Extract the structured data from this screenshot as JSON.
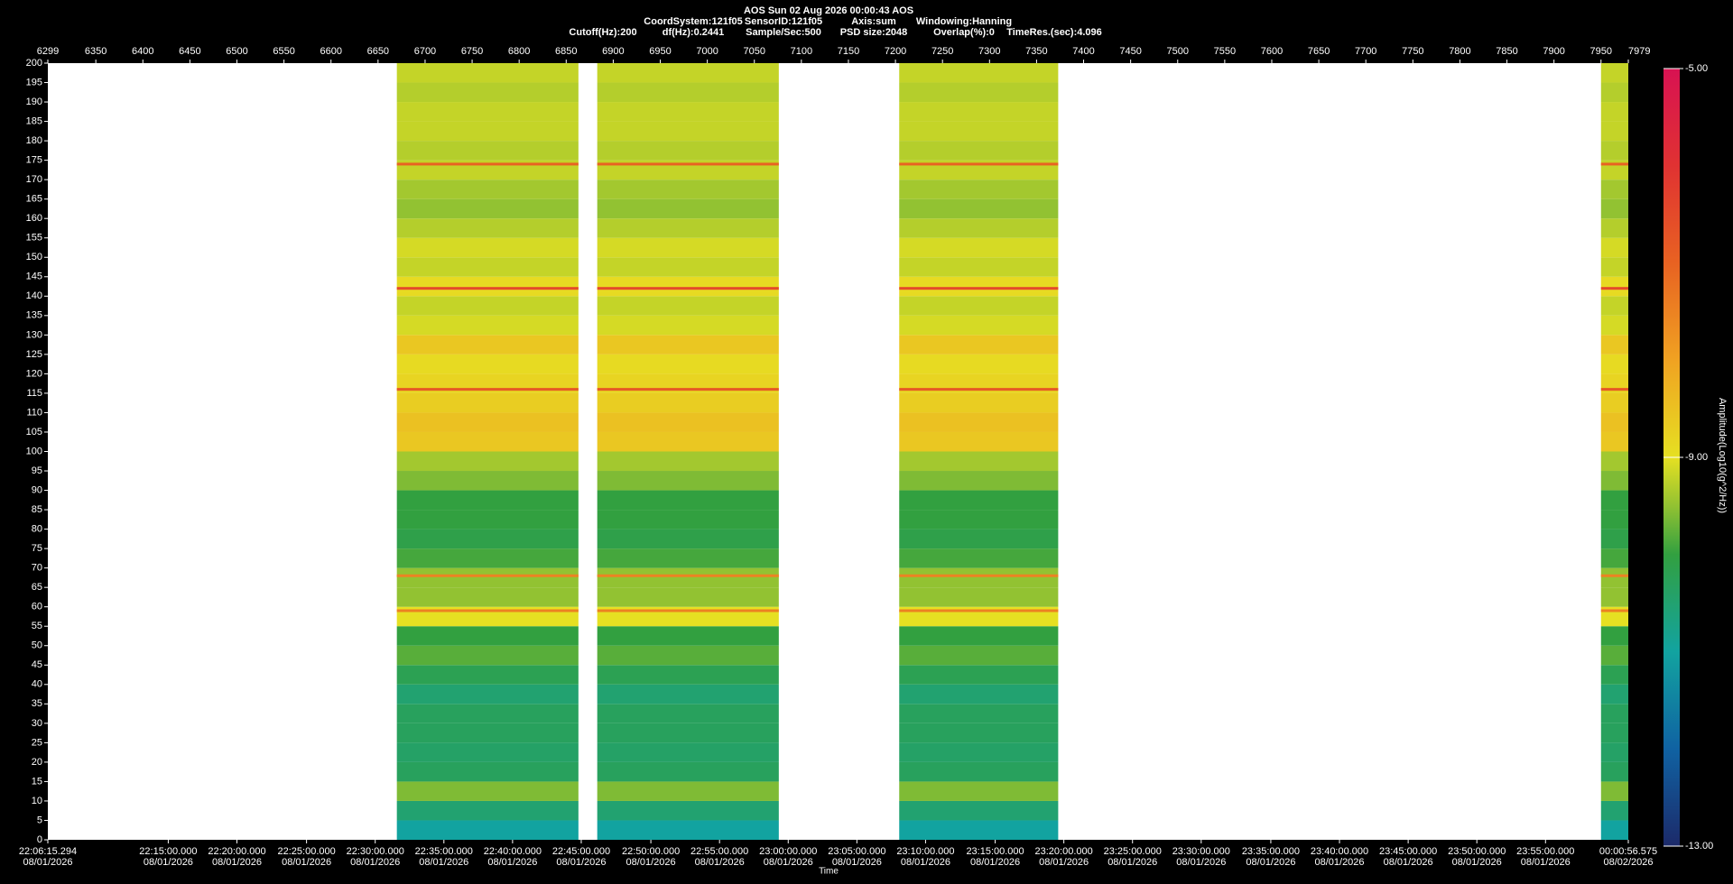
{
  "chart_data": {
    "type": "spectrogram",
    "header": [
      "AOS  Sun 02 Aug 2026 00:00:43  AOS"
    ],
    "info_line1": [
      "CoordSystem:121f05",
      "SensorID:121f05",
      "Axis:sum",
      "Windowing:Hanning"
    ],
    "info_line2": [
      "Cutoff(Hz):200",
      "df(Hz):0.2441",
      "Sample/Sec:500",
      "PSD size:2048",
      "Overlap(%):0",
      "TimeRes.(sec):4.096"
    ],
    "x_label": "Time",
    "colorbar_label": "Amplitude(Log10(g^2/Hz))",
    "xlim": [
      6299,
      7979
    ],
    "xticks": [
      6299,
      6350,
      6400,
      6450,
      6500,
      6550,
      6600,
      6650,
      6700,
      6750,
      6800,
      6850,
      6900,
      6950,
      7000,
      7050,
      7100,
      7150,
      7200,
      7250,
      7300,
      7350,
      7400,
      7450,
      7500,
      7550,
      7600,
      7650,
      7700,
      7750,
      7800,
      7850,
      7900,
      7950,
      7979
    ],
    "time_ticks": [
      {
        "value": 6299,
        "label": "22:06:15.294",
        "date": "08/01/2026"
      },
      {
        "value": 6427,
        "label": "22:15:00.000",
        "date": "08/01/2026"
      },
      {
        "value": 6500,
        "label": "22:20:00.000",
        "date": "08/01/2026"
      },
      {
        "value": 6574,
        "label": "22:25:00.000",
        "date": "08/01/2026"
      },
      {
        "value": 6647,
        "label": "22:30:00.000",
        "date": "08/01/2026"
      },
      {
        "value": 6720,
        "label": "22:35:00.000",
        "date": "08/01/2026"
      },
      {
        "value": 6793,
        "label": "22:40:00.000",
        "date": "08/01/2026"
      },
      {
        "value": 6866,
        "label": "22:45:00.000",
        "date": "08/01/2026"
      },
      {
        "value": 6940,
        "label": "22:50:00.000",
        "date": "08/01/2026"
      },
      {
        "value": 7013,
        "label": "22:55:00.000",
        "date": "08/01/2026"
      },
      {
        "value": 7086,
        "label": "23:00:00.000",
        "date": "08/01/2026"
      },
      {
        "value": 7159,
        "label": "23:05:00.000",
        "date": "08/01/2026"
      },
      {
        "value": 7232,
        "label": "23:10:00.000",
        "date": "08/01/2026"
      },
      {
        "value": 7306,
        "label": "23:15:00.000",
        "date": "08/01/2026"
      },
      {
        "value": 7379,
        "label": "23:20:00.000",
        "date": "08/01/2026"
      },
      {
        "value": 7452,
        "label": "23:25:00.000",
        "date": "08/01/2026"
      },
      {
        "value": 7525,
        "label": "23:30:00.000",
        "date": "08/01/2026"
      },
      {
        "value": 7599,
        "label": "23:35:00.000",
        "date": "08/01/2026"
      },
      {
        "value": 7672,
        "label": "23:40:00.000",
        "date": "08/01/2026"
      },
      {
        "value": 7745,
        "label": "23:45:00.000",
        "date": "08/01/2026"
      },
      {
        "value": 7818,
        "label": "23:50:00.000",
        "date": "08/01/2026"
      },
      {
        "value": 7891,
        "label": "23:55:00.000",
        "date": "08/01/2026"
      },
      {
        "value": 7979,
        "label": "00:00:56.575",
        "date": "08/02/2026"
      }
    ],
    "ylim": [
      0,
      200
    ],
    "yticks": [
      0,
      5,
      10,
      15,
      20,
      25,
      30,
      35,
      40,
      45,
      50,
      55,
      60,
      65,
      70,
      75,
      80,
      85,
      90,
      95,
      100,
      105,
      110,
      115,
      120,
      125,
      130,
      135,
      140,
      145,
      150,
      155,
      160,
      165,
      170,
      175,
      180,
      185,
      190,
      195,
      200
    ],
    "segments": [
      [
        6670,
        6863
      ],
      [
        6883,
        7076
      ],
      [
        7204,
        7373
      ],
      [
        7950,
        7979
      ]
    ],
    "freq_bins": [
      0,
      5,
      10,
      15,
      20,
      25,
      30,
      35,
      40,
      45,
      50,
      55,
      60,
      65,
      70,
      75,
      80,
      85,
      90,
      95,
      100,
      105,
      110,
      115,
      120,
      125,
      130,
      135,
      140,
      145,
      150,
      155,
      160,
      165,
      170,
      175,
      180,
      185,
      190,
      195,
      200
    ],
    "amplitude": [
      -11,
      -10.5,
      -9.6,
      -10.3,
      -10.4,
      -10.3,
      -10.3,
      -10.5,
      -10.2,
      -9.8,
      -10,
      -9,
      -9.5,
      -9.5,
      -9.9,
      -10.1,
      -10,
      -10,
      -9.6,
      -9.4,
      -8.6,
      -8.5,
      -8.7,
      -8.8,
      -8.9,
      -8.6,
      -9.1,
      -9.2,
      -8.9,
      -9.2,
      -9.1,
      -9.3,
      -9.5,
      -9.4,
      -9.2,
      -9.3,
      -9.2,
      -9.2,
      -9.3,
      -9.2
    ],
    "tones": [
      {
        "freq": 174,
        "amplitude": -7
      },
      {
        "freq": 142,
        "amplitude": -6.5
      },
      {
        "freq": 116,
        "amplitude": -6.8
      },
      {
        "freq": 68,
        "amplitude": -7.5
      },
      {
        "freq": 59,
        "amplitude": -7.5
      }
    ],
    "colorbar_ticks": [
      {
        "value": -5,
        "label": "-5.00"
      },
      {
        "value": -9,
        "label": "-9.00"
      },
      {
        "value": -13,
        "label": "-13.00"
      }
    ],
    "colormap": [
      {
        "value": -13,
        "color": "#1c2a6a"
      },
      {
        "value": -12,
        "color": "#1062a2"
      },
      {
        "value": -11,
        "color": "#12a3a0"
      },
      {
        "value": -10,
        "color": "#32a040"
      },
      {
        "value": -9.5,
        "color": "#92c232"
      },
      {
        "value": -9,
        "color": "#e6e022"
      },
      {
        "value": -8,
        "color": "#f0a222"
      },
      {
        "value": -7,
        "color": "#e86222"
      },
      {
        "value": -6,
        "color": "#e03232"
      },
      {
        "value": -5,
        "color": "#d81252"
      }
    ]
  }
}
